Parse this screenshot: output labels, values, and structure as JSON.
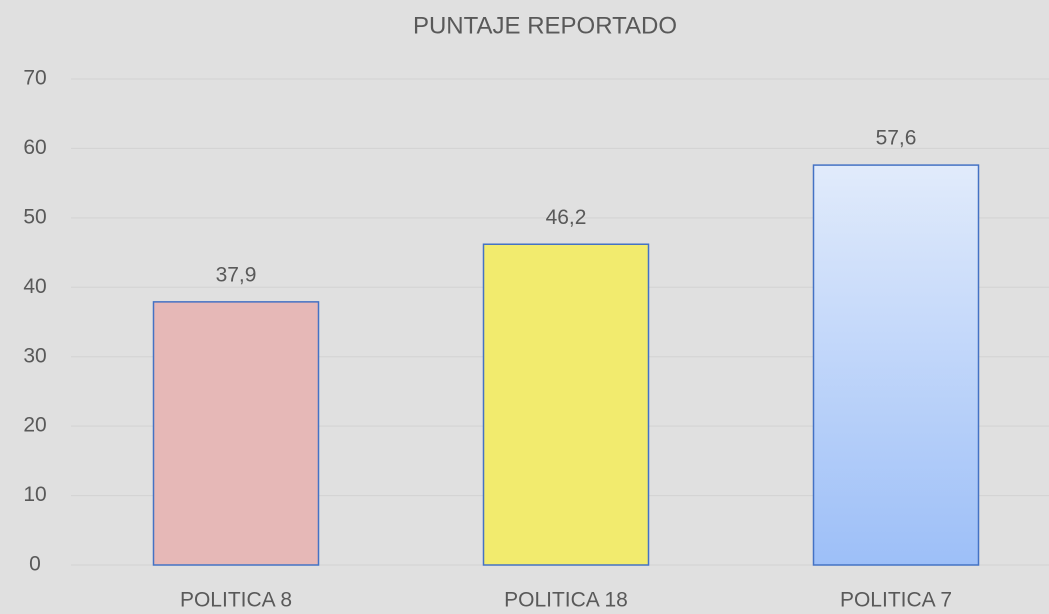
{
  "chart_data": {
    "type": "bar",
    "title": "PUNTAJE REPORTADO",
    "categories": [
      "POLITICA 8",
      "POLITICA 18",
      "POLITICA 7"
    ],
    "values": [
      37.9,
      46.2,
      57.6
    ],
    "value_labels": [
      "37,9",
      "46,2",
      "57,6"
    ],
    "colors": [
      "#e6b8b7",
      "#f2eb6e",
      [
        "#e1ebfb",
        "#9dbff8"
      ]
    ],
    "edge_color": "#4472c4",
    "ylim": [
      0,
      70
    ],
    "yticks": [
      0,
      10,
      20,
      30,
      40,
      50,
      60,
      70
    ],
    "grid": true
  }
}
